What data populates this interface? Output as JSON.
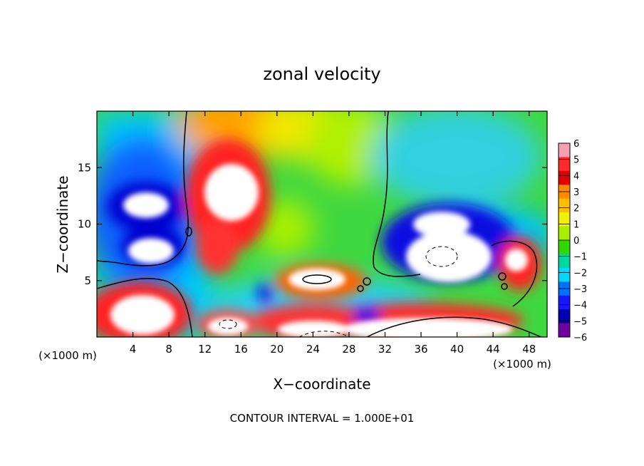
{
  "chart_data": {
    "type": "heatmap",
    "title": "zonal velocity",
    "xlabel": "X−coordinate",
    "ylabel": "Z−coordinate",
    "x_unit_label": "(×1000 m)",
    "y_unit_label": "(×1000 m)",
    "xlim": [
      0,
      50
    ],
    "ylim": [
      0,
      20
    ],
    "x_ticks": [
      4,
      8,
      12,
      16,
      20,
      24,
      28,
      32,
      36,
      40,
      44,
      48
    ],
    "y_ticks": [
      5,
      10,
      15
    ],
    "colorbar": {
      "min": -6,
      "max": 6,
      "ticks": [
        "6",
        "5",
        "4",
        "3",
        "2",
        "1",
        "0",
        "−1",
        "−2",
        "−3",
        "−4",
        "−5",
        "−6"
      ],
      "colors": [
        "#f4a0b0",
        "#ff2a2a",
        "#e50000",
        "#ff8a00",
        "#ffc000",
        "#f0f000",
        "#a8f000",
        "#30d800",
        "#00d8a0",
        "#00d8ff",
        "#0070ff",
        "#1818ff",
        "#0000b0",
        "#7000a0"
      ]
    },
    "annotation": "CONTOUR INTERVAL = 1.000E+01"
  }
}
